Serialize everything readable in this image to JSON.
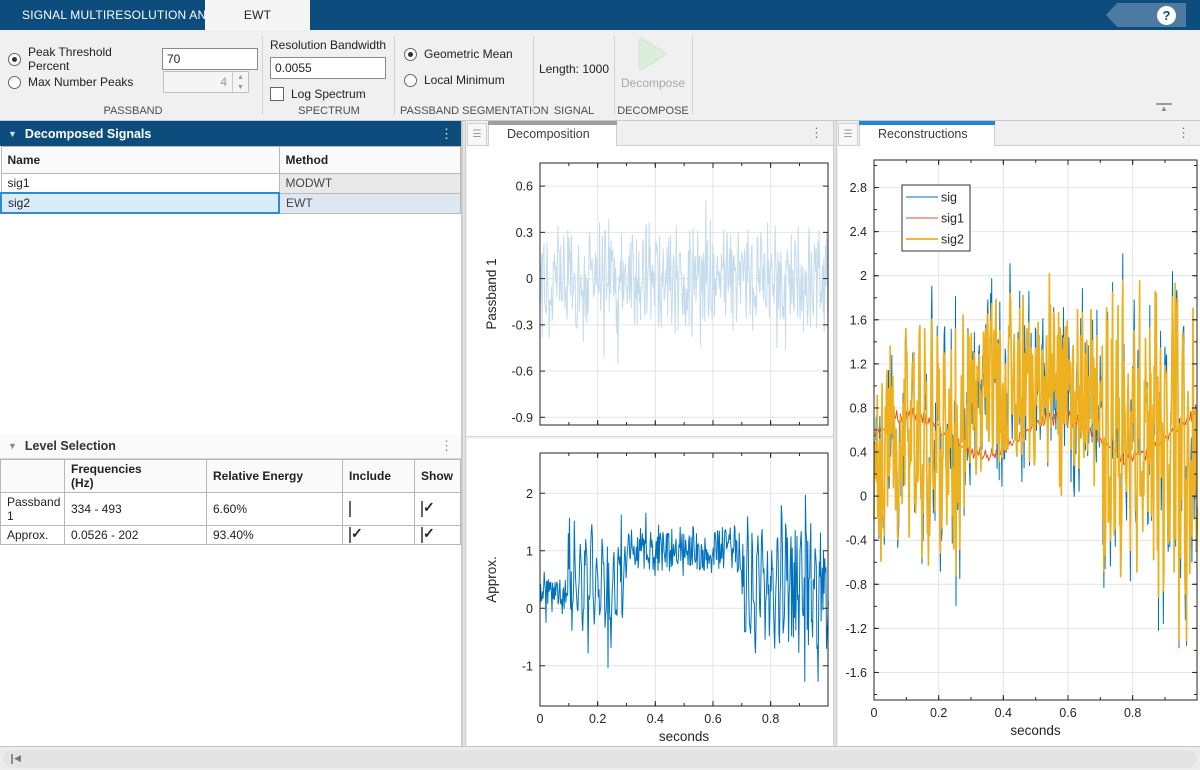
{
  "app": {
    "tabs": [
      {
        "label": "SIGNAL MULTIRESOLUTION ANALYZER",
        "active": false
      },
      {
        "label": "EWT",
        "active": true
      }
    ],
    "help_glyph": "?"
  },
  "toolstrip": {
    "passband": {
      "radio1_label": "Peak Threshold Percent",
      "radio1_selected": true,
      "threshold_value": "70",
      "radio2_label": "Max Number Peaks",
      "radio2_selected": false,
      "max_peaks_value": "4",
      "section": "PASSBAND"
    },
    "spectrum": {
      "bandwidth_label": "Resolution Bandwidth",
      "bandwidth_value": "0.0055",
      "log_label": "Log Spectrum",
      "log_checked": false,
      "section": "SPECTRUM"
    },
    "segmentation": {
      "radio1_label": "Geometric Mean",
      "radio1_selected": true,
      "radio2_label": "Local Minimum",
      "radio2_selected": false,
      "section": "PASSBAND SEGMENTATION"
    },
    "signal": {
      "length_label": "Length: 1000",
      "section": "SIGNAL"
    },
    "decompose": {
      "button_label": "Decompose",
      "section": "DECOMPOSE",
      "enabled": false
    }
  },
  "left": {
    "decomposed": {
      "title": "Decomposed Signals",
      "columns": [
        "Name",
        "Method"
      ],
      "rows": [
        {
          "name": "sig1",
          "method": "MODWT",
          "selected": false
        },
        {
          "name": "sig2",
          "method": "EWT",
          "selected": true
        }
      ]
    },
    "levels": {
      "title": "Level Selection",
      "columns": [
        "",
        "Frequencies\n(Hz)",
        "Relative Energy",
        "Include",
        "Show"
      ],
      "rows": [
        {
          "label": "Passband 1",
          "frequencies": "334 - 493",
          "energy": "6.60%",
          "include": false,
          "show": true
        },
        {
          "label": "Approx.",
          "frequencies": "0.0526 - 202",
          "energy": "93.40%",
          "include": true,
          "show": true
        }
      ]
    }
  },
  "panels": {
    "decomposition": {
      "tab": "Decomposition",
      "accent_color": "#9e9e9e"
    },
    "reconstructions": {
      "tab": "Reconstructions",
      "accent_color": "#1e88d2"
    }
  },
  "colors": {
    "header_blue": "#0d4d7d",
    "matlab_blue": "#0072BD",
    "matlab_orange": "#D95319",
    "matlab_gold": "#EDB120",
    "pale_blue": "#c5dcee"
  },
  "chart_data": [
    {
      "type": "line",
      "title": "",
      "xlabel": "",
      "ylabel": "Passband 1",
      "xlim": [
        0,
        0.999
      ],
      "ylim": [
        -0.95,
        0.75
      ],
      "xticks": [
        [
          0,
          ""
        ],
        [
          0.2,
          ""
        ],
        [
          0.4,
          ""
        ],
        [
          0.6,
          ""
        ],
        [
          0.8,
          ""
        ]
      ],
      "xminor_step": 0.1,
      "yticks": [
        [
          0.6,
          "0.6"
        ],
        [
          0.3,
          "0.3"
        ],
        [
          0,
          "0"
        ],
        [
          -0.3,
          "-0.3"
        ],
        [
          -0.6,
          "-0.6"
        ],
        [
          -0.9,
          "-0.9"
        ]
      ],
      "grid": true,
      "show_xticklabels": false,
      "series": [
        {
          "name": "passband1",
          "color": "#c5dcee",
          "width": 1,
          "gen": {
            "seed": 5,
            "n": 500,
            "spike": 0.05,
            "clip": [
              -0.8,
              0.66
            ],
            "segments": [
              {
                "from": 0,
                "center": 0,
                "amp": 0.42,
                "osc": 0.3,
                "freq": 85
              }
            ]
          }
        }
      ]
    },
    {
      "type": "line",
      "title": "",
      "xlabel": "seconds",
      "ylabel": "Approx.",
      "xlim": [
        0,
        0.999
      ],
      "ylim": [
        -1.7,
        2.7
      ],
      "xticks": [
        [
          0,
          "0"
        ],
        [
          0.2,
          "0.2"
        ],
        [
          0.4,
          "0.4"
        ],
        [
          0.6,
          "0.6"
        ],
        [
          0.8,
          "0.8"
        ]
      ],
      "xminor_step": 0.1,
      "yticks": [
        [
          2,
          "2"
        ],
        [
          1,
          "1"
        ],
        [
          0,
          "0"
        ],
        [
          -1,
          "-1"
        ]
      ],
      "grid": true,
      "show_xticklabels": true,
      "series": [
        {
          "name": "approx",
          "color": "#0072BD",
          "width": 1,
          "gen": {
            "seed": 3,
            "n": 480,
            "spike": 0.04,
            "clip": [
              -1.28,
              2.58
            ],
            "segments": [
              {
                "from": 0,
                "center": 0.25,
                "amp": 0.38,
                "osc": 0.25,
                "freq": 45
              },
              {
                "from": 0.095,
                "center": 0.45,
                "amp": 1.5,
                "osc": 0.7,
                "freq": 52
              },
              {
                "from": 0.3,
                "center": 1.0,
                "amp": 0.5,
                "osc": 0.2,
                "freq": 70
              },
              {
                "from": 0.7,
                "center": 0.45,
                "amp": 1.55,
                "osc": 0.5,
                "freq": 60
              }
            ]
          }
        }
      ]
    },
    {
      "type": "line",
      "title": "",
      "xlabel": "seconds",
      "ylabel": "",
      "xlim": [
        0,
        0.999
      ],
      "ylim": [
        -1.85,
        3.05
      ],
      "xticks": [
        [
          0,
          "0"
        ],
        [
          0.2,
          "0.2"
        ],
        [
          0.4,
          "0.4"
        ],
        [
          0.6,
          "0.6"
        ],
        [
          0.8,
          "0.8"
        ]
      ],
      "xminor_step": 0.1,
      "yticks": [
        [
          2.8,
          "2.8"
        ],
        [
          2.4,
          "2.4"
        ],
        [
          2,
          "2"
        ],
        [
          1.6,
          "1.6"
        ],
        [
          1.2,
          "1.2"
        ],
        [
          0.8,
          "0.8"
        ],
        [
          0.4,
          "0.4"
        ],
        [
          0,
          "0"
        ],
        [
          -0.4,
          "-0.4"
        ],
        [
          -0.8,
          "-0.8"
        ],
        [
          -1.2,
          "-1.2"
        ],
        [
          -1.6,
          "-1.6"
        ]
      ],
      "yminor_step": 0.2,
      "grid": true,
      "show_xticklabels": true,
      "legend": [
        "sig",
        "sig1",
        "sig2"
      ],
      "base_gen": {
        "seed": 7,
        "n": 600,
        "spike": 0.03,
        "clip": [
          -1.32,
          2.52
        ],
        "segments": [
          {
            "from": 0,
            "center": 0.35,
            "amp": 0.85,
            "osc": 0.25,
            "freq": 55
          },
          {
            "from": 0.095,
            "center": 0.5,
            "amp": 1.5,
            "osc": 0.55,
            "freq": 52
          },
          {
            "from": 0.3,
            "center": 1.0,
            "amp": 0.9,
            "osc": 0.25,
            "freq": 72
          },
          {
            "from": 0.7,
            "center": 0.55,
            "amp": 1.7,
            "osc": 0.45,
            "freq": 60
          }
        ]
      },
      "series": [
        {
          "name": "sig",
          "color": "#0072BD",
          "width": 1,
          "from_base": true,
          "extra_noise": 0.3,
          "noise_seed": 11,
          "clip": [
            -1.38,
            2.76
          ]
        },
        {
          "name": "sig1",
          "color": "#D95319",
          "width": 1,
          "gen": {
            "seed": 21,
            "n": 300,
            "spike": 0,
            "segments": [
              {
                "from": 0,
                "center": 0.55,
                "amp": 0.3,
                "osc": 0.85,
                "freq": 2.2
              }
            ]
          }
        },
        {
          "name": "sig2",
          "color": "#EDB120",
          "width": 1.7,
          "from_base": true,
          "extra_noise": 0,
          "noise_seed": 13
        }
      ]
    }
  ]
}
